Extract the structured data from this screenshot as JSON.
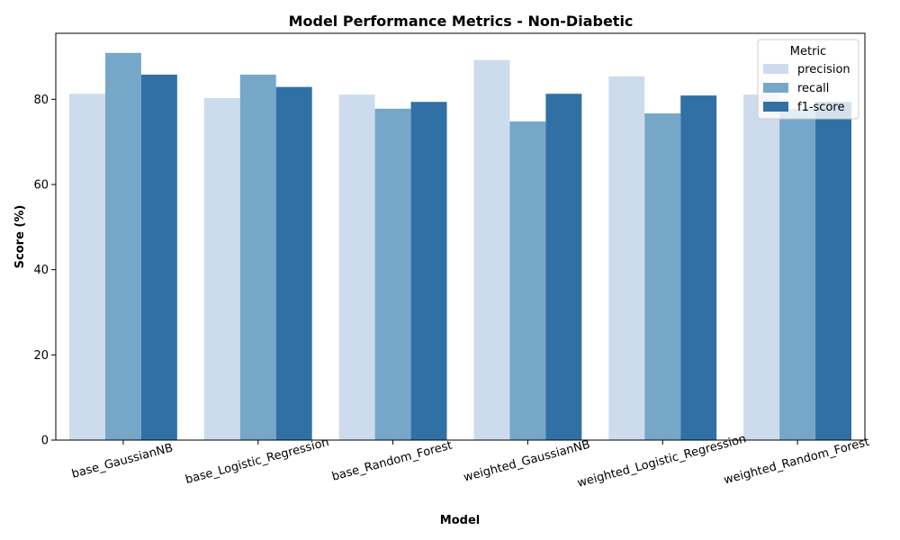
{
  "chart_data": {
    "type": "bar",
    "title": "Model Performance Metrics - Non-Diabetic",
    "xlabel": "Model",
    "ylabel": "Score (%)",
    "ylim": [
      0,
      95.5
    ],
    "yticks": [
      0,
      20,
      40,
      60,
      80
    ],
    "grid": false,
    "legend_title": "Metric",
    "legend_position": "top-right",
    "categories": [
      "base_GaussianNB",
      "base_Logistic_Regression",
      "base_Random_Forest",
      "weighted_GaussianNB",
      "weighted_Logistic_Regression",
      "weighted_Random_Forest"
    ],
    "series": [
      {
        "name": "precision",
        "color": "#cddcec",
        "values": [
          81.3,
          80.3,
          81.1,
          89.2,
          85.4,
          81.1
        ]
      },
      {
        "name": "recall",
        "color": "#76a7c9",
        "values": [
          90.9,
          85.8,
          77.8,
          74.8,
          76.7,
          77.8
        ]
      },
      {
        "name": "f1-score",
        "color": "#3170a5",
        "values": [
          85.8,
          82.9,
          79.4,
          81.3,
          80.9,
          79.4
        ]
      }
    ]
  }
}
